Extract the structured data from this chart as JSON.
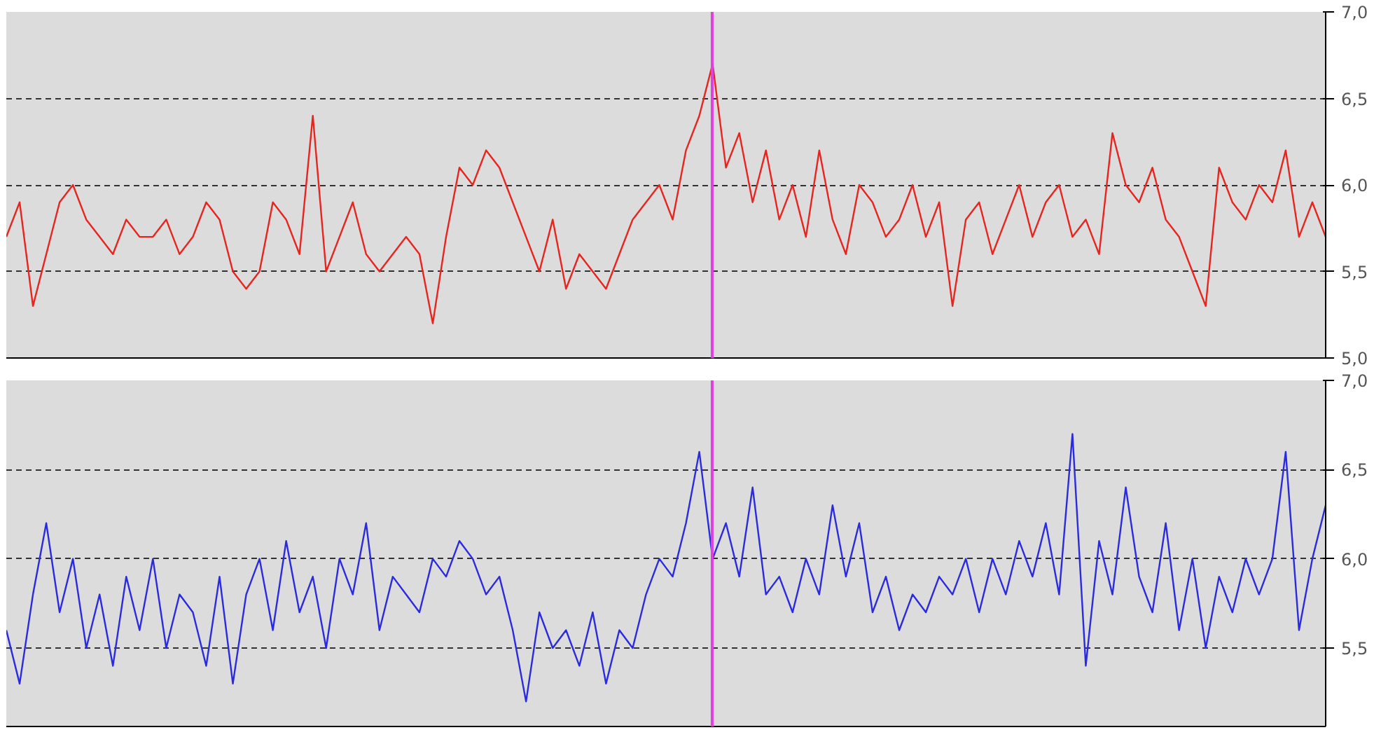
{
  "chart_data": [
    {
      "type": "line",
      "categories": [
        null,
        null,
        null,
        null,
        null,
        null,
        null,
        null,
        null,
        null,
        null,
        null,
        null,
        null,
        null,
        null,
        null,
        null,
        null,
        null,
        null,
        null,
        null,
        null,
        null,
        null,
        null,
        null,
        null,
        null,
        null,
        null,
        null,
        null,
        null,
        null,
        null,
        null,
        null,
        null,
        null,
        null,
        null,
        null,
        null,
        null,
        null,
        null,
        null,
        null,
        null,
        null,
        null,
        null,
        null,
        null,
        null,
        null,
        null,
        null,
        null,
        null,
        null,
        null,
        null,
        null,
        null,
        null,
        null,
        null,
        null,
        null,
        null,
        null,
        null,
        null,
        null,
        null,
        null,
        null,
        null,
        null,
        null,
        null,
        null,
        null,
        null,
        null,
        null,
        null,
        null,
        null,
        null,
        null,
        null,
        null,
        null,
        null,
        null,
        null
      ],
      "series": [
        {
          "color": "#e8241f",
          "values": [
            5.7,
            5.9,
            5.3,
            5.6,
            5.9,
            6.0,
            5.8,
            5.7,
            5.6,
            5.8,
            5.7,
            5.7,
            5.8,
            5.6,
            5.7,
            5.9,
            5.8,
            5.5,
            5.4,
            5.5,
            5.9,
            5.8,
            5.6,
            6.4,
            5.5,
            5.7,
            5.9,
            5.6,
            5.5,
            5.6,
            5.7,
            5.6,
            5.2,
            5.7,
            6.1,
            6.0,
            6.2,
            6.1,
            5.9,
            5.7,
            5.5,
            5.8,
            5.4,
            5.6,
            5.5,
            5.4,
            5.6,
            5.8,
            5.9,
            6.0,
            5.8,
            6.2,
            6.4,
            6.7,
            6.1,
            6.3,
            5.9,
            6.2,
            5.8,
            6.0,
            5.7,
            6.2,
            5.8,
            5.6,
            6.0,
            5.9,
            5.7,
            5.8,
            6.0,
            5.7,
            5.9,
            5.3,
            5.8,
            5.9,
            5.6,
            5.8,
            6.0,
            5.7,
            5.9,
            6.0,
            5.7,
            5.8,
            5.6,
            6.3,
            6.0,
            5.9,
            6.1,
            5.8,
            5.7,
            5.5,
            5.3,
            6.1,
            5.9,
            5.8,
            6.0,
            5.9,
            6.2,
            5.7,
            5.9,
            5.7
          ]
        }
      ],
      "ylim": [
        5.0,
        7.0
      ],
      "yticks": [
        {
          "value": 5.0,
          "label": "5,0"
        },
        {
          "value": 5.5,
          "label": "5,5"
        },
        {
          "value": 6.0,
          "label": "6,0"
        },
        {
          "value": 6.5,
          "label": "6,5"
        },
        {
          "value": 7.0,
          "label": "7,0"
        }
      ],
      "grid": "y"
    },
    {
      "type": "line",
      "categories": [
        null,
        null,
        null,
        null,
        null,
        null,
        null,
        null,
        null,
        null,
        null,
        null,
        null,
        null,
        null,
        null,
        null,
        null,
        null,
        null,
        null,
        null,
        null,
        null,
        null,
        null,
        null,
        null,
        null,
        null,
        null,
        null,
        null,
        null,
        null,
        null,
        null,
        null,
        null,
        null,
        null,
        null,
        null,
        null,
        null,
        null,
        null,
        null,
        null,
        null,
        null,
        null,
        null,
        null,
        null,
        null,
        null,
        null,
        null,
        null,
        null,
        null,
        null,
        null,
        null,
        null,
        null,
        null,
        null,
        null,
        null,
        null,
        null,
        null,
        null,
        null,
        null,
        null,
        null,
        null,
        null,
        null,
        null,
        null,
        null,
        null,
        null,
        null,
        null,
        null,
        null,
        null,
        null,
        null,
        null,
        null,
        null,
        null,
        null,
        null
      ],
      "series": [
        {
          "color": "#2a2ae0",
          "values": [
            5.6,
            5.3,
            5.8,
            6.2,
            5.7,
            6.0,
            5.5,
            5.8,
            5.4,
            5.9,
            5.6,
            6.0,
            5.5,
            5.8,
            5.7,
            5.4,
            5.9,
            5.3,
            5.8,
            6.0,
            5.6,
            6.1,
            5.7,
            5.9,
            5.5,
            6.0,
            5.8,
            6.2,
            5.6,
            5.9,
            5.8,
            5.7,
            6.0,
            5.9,
            6.1,
            6.0,
            5.8,
            5.9,
            5.6,
            5.2,
            5.7,
            5.5,
            5.6,
            5.4,
            5.7,
            5.3,
            5.6,
            5.5,
            5.8,
            6.0,
            5.9,
            6.2,
            6.6,
            6.0,
            6.2,
            5.9,
            6.4,
            5.8,
            5.9,
            5.7,
            6.0,
            5.8,
            6.3,
            5.9,
            6.2,
            5.7,
            5.9,
            5.6,
            5.8,
            5.7,
            5.9,
            5.8,
            6.0,
            5.7,
            6.0,
            5.8,
            6.1,
            5.9,
            6.2,
            5.8,
            6.7,
            5.4,
            6.1,
            5.8,
            6.4,
            5.9,
            5.7,
            6.2,
            5.6,
            6.0,
            5.5,
            5.9,
            5.7,
            6.0,
            5.8,
            6.0,
            6.6,
            5.6,
            6.0,
            6.3
          ]
        }
      ],
      "ylim": [
        5.06,
        7.0
      ],
      "yticks": [
        {
          "value": 5.5,
          "label": "5,5"
        },
        {
          "value": 6.0,
          "label": "6,0"
        },
        {
          "value": 6.5,
          "label": "6,5"
        },
        {
          "value": 7.0,
          "label": "7,0"
        }
      ],
      "grid": "y"
    }
  ]
}
